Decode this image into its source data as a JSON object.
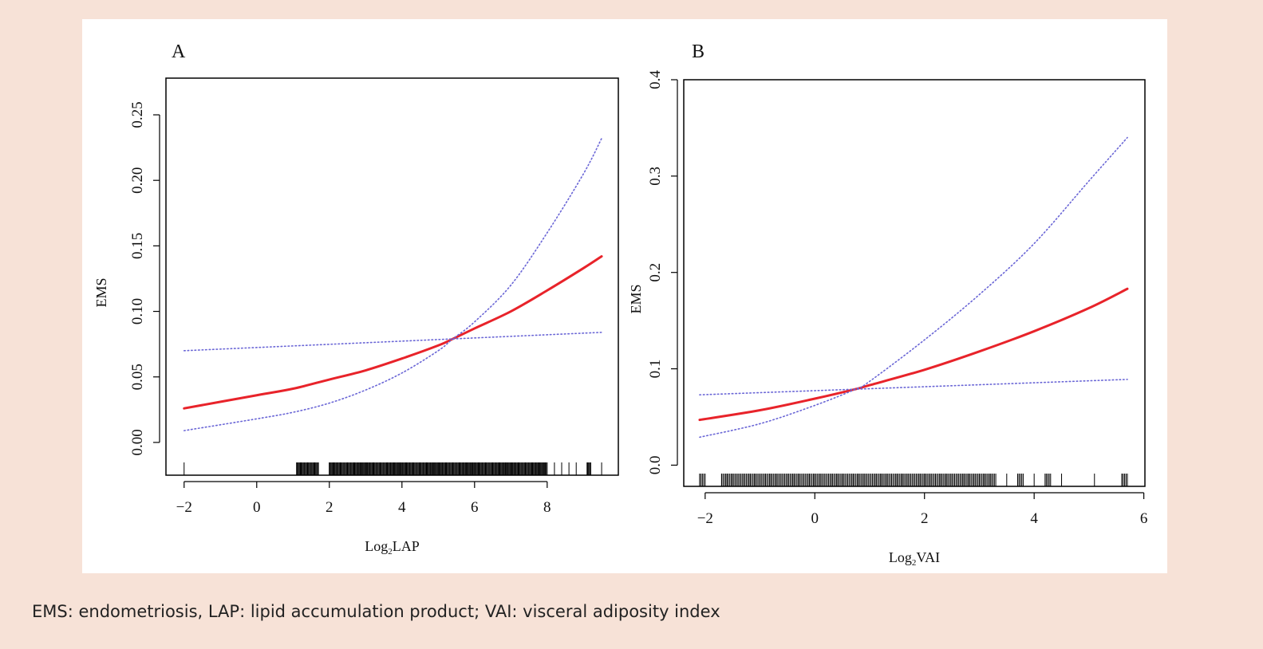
{
  "caption": "EMS: endometriosis, LAP: lipid accumulation product; VAI: visceral adiposity index",
  "colors": {
    "fit": "#e8232a",
    "ci": "#6a66d6",
    "axis": "#000000",
    "background": "#f7e2d7"
  },
  "chart_data": [
    {
      "panel_label": "A",
      "type": "line",
      "xlabel_main": "Log",
      "xlabel_sub": "2",
      "xlabel_rest": "LAP",
      "ylabel": "EMS",
      "xlim": [
        -2.5,
        9.96
      ],
      "ylim": [
        -0.025,
        0.278
      ],
      "xticks": [
        -2,
        0,
        2,
        4,
        6,
        8
      ],
      "xtick_labels": [
        "−2",
        "0",
        "2",
        "4",
        "6",
        "8"
      ],
      "yticks": [
        0,
        0.05,
        0.1,
        0.15,
        0.2,
        0.25
      ],
      "ytick_labels": [
        "0.00",
        "0.05",
        "0.10",
        "0.15",
        "0.20",
        "0.25"
      ],
      "grid": false,
      "series": [
        {
          "style": "solid-red",
          "x": [
            -2,
            0,
            1,
            2,
            3,
            4,
            5,
            5.4,
            6,
            7,
            8,
            9,
            9.5
          ],
          "y": [
            0.026,
            0.036,
            0.041,
            0.048,
            0.055,
            0.064,
            0.074,
            0.079,
            0.087,
            0.1,
            0.116,
            0.133,
            0.142
          ]
        },
        {
          "style": "dotted-blue",
          "x": [
            -2,
            0,
            1,
            2,
            3,
            4,
            5,
            5.4,
            6,
            7,
            8,
            9,
            9.5
          ],
          "y": [
            0.009,
            0.018,
            0.023,
            0.03,
            0.04,
            0.053,
            0.07,
            0.079,
            0.092,
            0.12,
            0.16,
            0.205,
            0.232
          ]
        },
        {
          "style": "dotted-blue",
          "x": [
            -2,
            9.5
          ],
          "y": [
            0.07,
            0.084
          ]
        }
      ],
      "rug": [
        -2,
        1.1,
        1.2,
        1.3,
        1.4,
        1.5,
        1.6,
        1.7,
        2.0,
        2.1,
        2.2,
        2.3,
        2.4,
        2.5,
        2.6,
        2.7,
        2.8,
        2.9,
        3.0,
        3.1,
        3.2,
        3.3,
        3.4,
        3.5,
        3.6,
        3.7,
        3.8,
        3.9,
        4.0,
        4.1,
        4.2,
        4.3,
        4.4,
        4.5,
        4.6,
        4.7,
        4.8,
        4.9,
        5.0,
        5.1,
        5.2,
        5.3,
        5.4,
        5.5,
        5.6,
        5.7,
        5.8,
        5.9,
        6.0,
        6.1,
        6.2,
        6.3,
        6.4,
        6.5,
        6.6,
        6.7,
        6.8,
        6.9,
        7.0,
        7.1,
        7.2,
        7.3,
        7.4,
        7.5,
        7.6,
        7.7,
        7.8,
        7.9,
        8.0,
        8.2,
        8.4,
        8.6,
        8.8,
        9.1,
        9.2,
        9.5
      ]
    },
    {
      "panel_label": "B",
      "type": "line",
      "xlabel_main": "Log",
      "xlabel_sub": "2",
      "xlabel_rest": "VAI",
      "ylabel": "EMS",
      "xlim": [
        -2.39,
        6.02
      ],
      "ylim": [
        -0.022,
        0.4
      ],
      "xticks": [
        -2,
        0,
        2,
        4,
        6
      ],
      "xtick_labels": [
        "−2",
        "0",
        "2",
        "4",
        "6"
      ],
      "yticks": [
        0,
        0.1,
        0.2,
        0.3,
        0.4
      ],
      "ytick_labels": [
        "0.0",
        "0.1",
        "0.2",
        "0.3",
        "0.4"
      ],
      "grid": false,
      "series": [
        {
          "style": "solid-red",
          "x": [
            -2.1,
            -1,
            0,
            0.75,
            1,
            2,
            3,
            4,
            5,
            5.7
          ],
          "y": [
            0.047,
            0.057,
            0.069,
            0.079,
            0.083,
            0.099,
            0.118,
            0.139,
            0.163,
            0.183
          ]
        },
        {
          "style": "dotted-blue",
          "x": [
            -2.1,
            -1,
            0,
            0.75,
            1,
            2,
            3,
            4,
            5,
            5.7
          ],
          "y": [
            0.029,
            0.043,
            0.062,
            0.079,
            0.087,
            0.13,
            0.177,
            0.23,
            0.295,
            0.34
          ]
        },
        {
          "style": "dotted-blue",
          "x": [
            -2.1,
            5.7
          ],
          "y": [
            0.073,
            0.089
          ]
        }
      ],
      "rug": [
        -2.1,
        -2.0,
        -1.7,
        -1.6,
        -1.5,
        -1.4,
        -1.3,
        -1.2,
        -1.1,
        -1.0,
        -0.9,
        -0.8,
        -0.7,
        -0.6,
        -0.5,
        -0.4,
        -0.3,
        -0.2,
        -0.1,
        0.0,
        0.1,
        0.2,
        0.3,
        0.4,
        0.5,
        0.6,
        0.7,
        0.8,
        0.9,
        1.0,
        1.1,
        1.2,
        1.3,
        1.4,
        1.5,
        1.6,
        1.7,
        1.8,
        1.9,
        2.0,
        2.1,
        2.2,
        2.3,
        2.4,
        2.5,
        2.6,
        2.7,
        2.8,
        2.9,
        3.0,
        3.1,
        3.2,
        3.3,
        3.5,
        3.7,
        3.8,
        4.0,
        4.2,
        4.3,
        4.5,
        5.1,
        5.6,
        5.7
      ]
    }
  ]
}
